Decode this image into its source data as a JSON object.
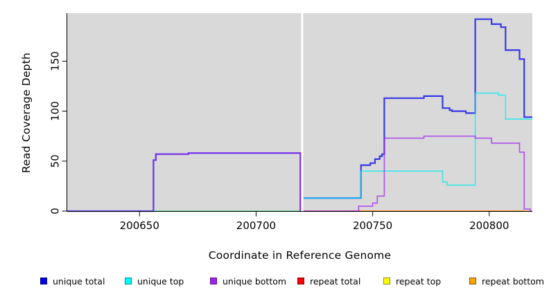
{
  "figure": {
    "xlabel": "Coordinate in Reference Genome",
    "ylabel": "Read Coverage Depth"
  },
  "chart_data": {
    "type": "line",
    "step_style": true,
    "title": "",
    "xlabel": "Coordinate in Reference Genome",
    "ylabel": "Read Coverage Depth",
    "xlim": [
      200619,
      200818.5
    ],
    "ylim": [
      0,
      198
    ],
    "x_ticks": [
      200650,
      200700,
      200750,
      200800
    ],
    "y_ticks": [
      0,
      50,
      100,
      150
    ],
    "panel_bg": "#d9d9d9",
    "grid": false,
    "gap_band": {
      "x0": 200719.3,
      "x1": 200720.2,
      "color": "#ffffff",
      "note": "white no-data band"
    },
    "legend_position": "bottom",
    "legend": [
      {
        "label": "unique total",
        "color": "#0000ee"
      },
      {
        "label": "unique top",
        "color": "#00ffff"
      },
      {
        "label": "unique bottom",
        "color": "#a020f0"
      },
      {
        "label": "repeat total",
        "color": "#ff0000"
      },
      {
        "label": "repeat top",
        "color": "#ffff00"
      },
      {
        "label": "repeat bottom",
        "color": "#ffa500"
      }
    ],
    "series": [
      {
        "name": "repeat total",
        "color": "#ff0000",
        "width": 1.5,
        "segments": [
          [
            [
              200619,
              0
            ],
            [
              200719,
              0
            ]
          ],
          [
            [
              200720.4,
              0
            ],
            [
              200815,
              0
            ]
          ]
        ]
      },
      {
        "name": "repeat top",
        "color": "#ffff00",
        "width": 1.5,
        "segments": [
          [
            [
              200619,
              0
            ],
            [
              200719,
              0
            ]
          ]
        ]
      },
      {
        "name": "repeat bottom",
        "color": "#ffa500",
        "width": 1.8,
        "segments": [
          [
            [
              200745,
              0
            ],
            [
              200817.6,
              0
            ]
          ]
        ]
      },
      {
        "name": "unique total",
        "color": "#0000ee",
        "width": 2.2,
        "segments": [
          [
            [
              200619,
              0
            ],
            [
              200656,
              0
            ],
            [
              200656,
              51
            ],
            [
              200657,
              51
            ],
            [
              200657,
              57
            ],
            [
              200671,
              57
            ],
            [
              200671,
              58
            ],
            [
              200719,
              58
            ],
            [
              200719,
              0
            ]
          ],
          [
            [
              200720.4,
              13
            ],
            [
              200745,
              13
            ],
            [
              200745,
              46
            ],
            [
              200749,
              46
            ],
            [
              200749,
              48
            ],
            [
              200751,
              48
            ],
            [
              200751,
              52
            ],
            [
              200753,
              52
            ],
            [
              200753,
              55
            ],
            [
              200754,
              55
            ],
            [
              200754,
              57
            ],
            [
              200755,
              57
            ],
            [
              200755,
              113
            ],
            [
              200772,
              113
            ],
            [
              200772,
              115
            ],
            [
              200780,
              115
            ],
            [
              200780,
              103
            ],
            [
              200783,
              103
            ],
            [
              200783,
              101
            ],
            [
              200784,
              101
            ],
            [
              200784,
              100
            ],
            [
              200790,
              100
            ],
            [
              200790,
              98
            ],
            [
              200794,
              98
            ],
            [
              200794,
              192
            ],
            [
              200801,
              192
            ],
            [
              200801,
              187
            ],
            [
              200805,
              187
            ],
            [
              200805,
              184
            ],
            [
              200807,
              184
            ],
            [
              200807,
              161
            ],
            [
              200813,
              161
            ],
            [
              200813,
              152
            ],
            [
              200815,
              152
            ],
            [
              200815,
              94
            ],
            [
              200818.5,
              94
            ]
          ]
        ]
      },
      {
        "name": "unique top",
        "color": "#00eeee",
        "width": 1.6,
        "segments": [
          [
            [
              200619,
              0
            ],
            [
              200719,
              0
            ]
          ],
          [
            [
              200720.4,
              13
            ],
            [
              200745,
              13
            ],
            [
              200745,
              40
            ],
            [
              200780,
              40
            ],
            [
              200780,
              29
            ],
            [
              200782,
              29
            ],
            [
              200782,
              26
            ],
            [
              200794,
              26
            ],
            [
              200794,
              118
            ],
            [
              200804,
              118
            ],
            [
              200804,
              116
            ],
            [
              200807,
              116
            ],
            [
              200807,
              92
            ],
            [
              200818.5,
              92
            ]
          ]
        ]
      },
      {
        "name": "unique bottom",
        "color": "#a020f0",
        "width": 1.6,
        "segments": [
          [
            [
              200619,
              0
            ],
            [
              200656,
              0
            ],
            [
              200656,
              51
            ],
            [
              200657,
              51
            ],
            [
              200657,
              57
            ],
            [
              200671,
              57
            ],
            [
              200671,
              58
            ],
            [
              200719,
              58
            ],
            [
              200719,
              0
            ]
          ],
          [
            [
              200720.4,
              0
            ],
            [
              200744,
              0
            ],
            [
              200744,
              5
            ],
            [
              200750,
              5
            ],
            [
              200750,
              8
            ],
            [
              200752,
              8
            ],
            [
              200752,
              15
            ],
            [
              200755,
              15
            ],
            [
              200755,
              73
            ],
            [
              200772,
              73
            ],
            [
              200772,
              75
            ],
            [
              200794,
              75
            ],
            [
              200794,
              73
            ],
            [
              200801,
              73
            ],
            [
              200801,
              68
            ],
            [
              200813,
              68
            ],
            [
              200813,
              59
            ],
            [
              200815,
              59
            ],
            [
              200815,
              2
            ],
            [
              200817.6,
              2
            ],
            [
              200817.6,
              0
            ],
            [
              200818.5,
              0
            ]
          ]
        ]
      }
    ]
  }
}
